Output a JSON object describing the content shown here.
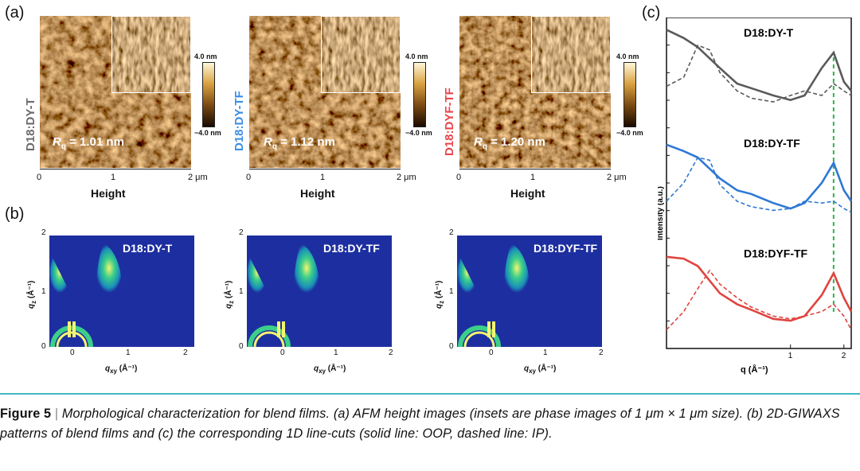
{
  "panel_labels": {
    "a": "(a)",
    "b": "(b)",
    "c": "(c)"
  },
  "afm": {
    "x_ticks": [
      "0",
      "1",
      "2 μm"
    ],
    "xlabel": "Height",
    "colorbar": {
      "max": "4.0 nm",
      "min": "−4.0 nm"
    },
    "samples": [
      {
        "name": "D18:DY-T",
        "color": "#6b6b6b",
        "rq_label": "R",
        "rq_sub": "q",
        "rq_value": " = 1.01 nm"
      },
      {
        "name": "D18:DY-TF",
        "color": "#3a8ee6",
        "rq_label": "R",
        "rq_sub": "q",
        "rq_value": " = 1.12 nm"
      },
      {
        "name": "D18:DYF-TF",
        "color": "#e8464b",
        "rq_label": "R",
        "rq_sub": "q",
        "rq_value": " = 1.20 nm"
      }
    ]
  },
  "giwaxs": {
    "titles": [
      "D18:DY-T",
      "D18:DY-TF",
      "D18:DYF-TF"
    ],
    "y_ticks": [
      "2",
      "1",
      "0"
    ],
    "x_ticks": [
      "0",
      "1",
      "2"
    ],
    "ylabel_main": "q",
    "ylabel_sub": "z",
    "ylabel_unit": " (Å⁻¹)",
    "xlabel_main": "q",
    "xlabel_sub": "xy",
    "xlabel_unit": " (Å⁻¹)"
  },
  "chart_data": {
    "type": "line",
    "xlabel": "q (Å⁻¹)",
    "ylabel": "Intensity (a.u.)",
    "x_scale": "log",
    "x_ticks": [
      "1",
      "2"
    ],
    "xlim": [
      0.2,
      2.2
    ],
    "reference_line_q": 1.75,
    "reference_line_color": "#2db34a",
    "series": [
      {
        "name": "D18:DY-T",
        "color": "#5a5a5a",
        "offset": 2,
        "oop": [
          [
            0.2,
            0.97
          ],
          [
            0.25,
            0.88
          ],
          [
            0.3,
            0.78
          ],
          [
            0.4,
            0.55
          ],
          [
            0.5,
            0.38
          ],
          [
            0.6,
            0.33
          ],
          [
            0.8,
            0.25
          ],
          [
            1.0,
            0.2
          ],
          [
            1.2,
            0.25
          ],
          [
            1.5,
            0.55
          ],
          [
            1.75,
            0.72
          ],
          [
            2.0,
            0.4
          ],
          [
            2.2,
            0.3
          ]
        ],
        "ip": [
          [
            0.2,
            0.35
          ],
          [
            0.25,
            0.45
          ],
          [
            0.3,
            0.8
          ],
          [
            0.35,
            0.75
          ],
          [
            0.4,
            0.5
          ],
          [
            0.5,
            0.3
          ],
          [
            0.6,
            0.22
          ],
          [
            0.8,
            0.18
          ],
          [
            1.0,
            0.25
          ],
          [
            1.2,
            0.3
          ],
          [
            1.5,
            0.25
          ],
          [
            1.75,
            0.38
          ],
          [
            2.0,
            0.3
          ],
          [
            2.2,
            0.25
          ]
        ]
      },
      {
        "name": "D18:DY-TF",
        "color": "#2f78d4",
        "offset": 1,
        "oop": [
          [
            0.2,
            0.92
          ],
          [
            0.25,
            0.85
          ],
          [
            0.3,
            0.78
          ],
          [
            0.4,
            0.55
          ],
          [
            0.5,
            0.42
          ],
          [
            0.6,
            0.38
          ],
          [
            0.8,
            0.28
          ],
          [
            1.0,
            0.22
          ],
          [
            1.2,
            0.28
          ],
          [
            1.5,
            0.5
          ],
          [
            1.75,
            0.72
          ],
          [
            2.0,
            0.42
          ],
          [
            2.2,
            0.3
          ]
        ],
        "ip": [
          [
            0.2,
            0.3
          ],
          [
            0.25,
            0.5
          ],
          [
            0.3,
            0.78
          ],
          [
            0.35,
            0.75
          ],
          [
            0.4,
            0.48
          ],
          [
            0.5,
            0.3
          ],
          [
            0.6,
            0.24
          ],
          [
            0.8,
            0.2
          ],
          [
            1.0,
            0.22
          ],
          [
            1.2,
            0.3
          ],
          [
            1.5,
            0.28
          ],
          [
            1.75,
            0.3
          ],
          [
            2.0,
            0.22
          ],
          [
            2.2,
            0.18
          ]
        ]
      },
      {
        "name": "D18:DYF-TF",
        "color": "#e0443f",
        "offset": 0,
        "oop": [
          [
            0.2,
            0.9
          ],
          [
            0.25,
            0.88
          ],
          [
            0.3,
            0.8
          ],
          [
            0.4,
            0.5
          ],
          [
            0.5,
            0.38
          ],
          [
            0.6,
            0.32
          ],
          [
            0.8,
            0.22
          ],
          [
            1.0,
            0.2
          ],
          [
            1.2,
            0.25
          ],
          [
            1.5,
            0.48
          ],
          [
            1.75,
            0.72
          ],
          [
            2.0,
            0.45
          ],
          [
            2.2,
            0.3
          ]
        ],
        "ip": [
          [
            0.2,
            0.1
          ],
          [
            0.25,
            0.3
          ],
          [
            0.3,
            0.55
          ],
          [
            0.35,
            0.75
          ],
          [
            0.4,
            0.6
          ],
          [
            0.5,
            0.45
          ],
          [
            0.6,
            0.35
          ],
          [
            0.8,
            0.25
          ],
          [
            1.0,
            0.22
          ],
          [
            1.2,
            0.25
          ],
          [
            1.5,
            0.3
          ],
          [
            1.75,
            0.38
          ],
          [
            2.0,
            0.25
          ],
          [
            2.2,
            0.1
          ]
        ]
      }
    ]
  },
  "caption": {
    "figure": "Figure 5",
    "divider": " | ",
    "text": "Morphological characterization for blend films. (a) AFM height images (insets are phase images of 1 μm × 1 μm size). (b) 2D-GIWAXS patterns of blend films and (c) the corresponding 1D line-cuts (solid line: OOP, dashed line: IP)."
  }
}
